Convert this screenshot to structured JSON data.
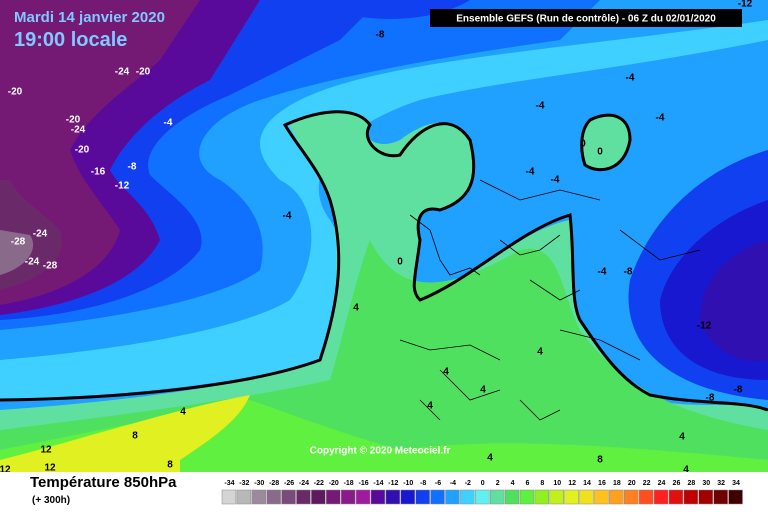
{
  "header": {
    "date": "Mardi 14 janvier 2020",
    "time": "19:00 locale",
    "run": "Ensemble GEFS  (Run de contrôle)  - 06 Z du 02/01/2020",
    "copyright": "Copyright © 2020 Meteociel.fr"
  },
  "footer": {
    "field": "Température 850hPa",
    "lead": "(+ 300h)"
  },
  "contour_labels": [
    "-12",
    "-8",
    "-24",
    "-20",
    "-20",
    "-4",
    "-4",
    "-4",
    "-4",
    "-20",
    "-24",
    "0",
    "0",
    "-20",
    "-8",
    "-16",
    "-12",
    "-4",
    "-4",
    "-4",
    "-28",
    "-24",
    "-24",
    "-28",
    "0",
    "-4",
    "-8",
    "4",
    "-12",
    "4",
    "4",
    "4",
    "4",
    "4",
    "-8",
    "-8",
    "8",
    "4",
    "12",
    "8",
    "12",
    "12",
    "8",
    "4",
    "4"
  ],
  "scale": {
    "values": [
      -34,
      -32,
      -30,
      -28,
      -26,
      -24,
      -22,
      -20,
      -18,
      -16,
      -14,
      -12,
      -10,
      -8,
      -6,
      -4,
      -2,
      0,
      2,
      4,
      6,
      8,
      10,
      12,
      14,
      16,
      18,
      20,
      22,
      24,
      26,
      28,
      30,
      32,
      34
    ],
    "colors": [
      "#d4d4d4",
      "#b8b8b8",
      "#9c8a9c",
      "#8a6a8a",
      "#7a4a7a",
      "#6a2a6a",
      "#5e1a5e",
      "#741a74",
      "#8a1a8a",
      "#a01aa0",
      "#5a0a9a",
      "#3010b0",
      "#1818d0",
      "#1040f0",
      "#1070ff",
      "#20a0ff",
      "#40d0ff",
      "#60f0f0",
      "#60e0a0",
      "#50e060",
      "#60f040",
      "#90f020",
      "#c0f020",
      "#e0f020",
      "#f0e020",
      "#ffc020",
      "#ffa020",
      "#ff8020",
      "#ff5020",
      "#ff2020",
      "#e01010",
      "#c00000",
      "#a00000",
      "#700000",
      "#400000"
    ]
  }
}
